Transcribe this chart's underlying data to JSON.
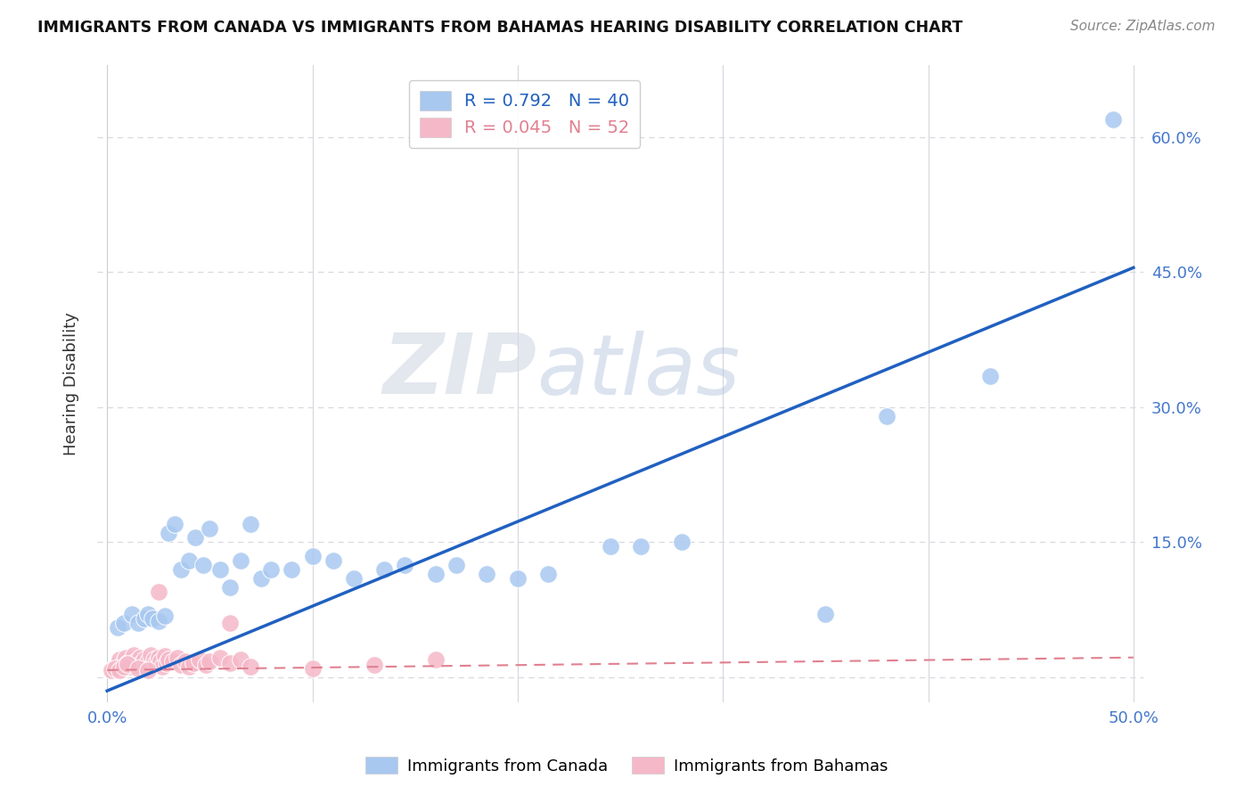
{
  "title": "IMMIGRANTS FROM CANADA VS IMMIGRANTS FROM BAHAMAS HEARING DISABILITY CORRELATION CHART",
  "source": "Source: ZipAtlas.com",
  "ylabel": "Hearing Disability",
  "xlim": [
    -0.005,
    0.505
  ],
  "ylim": [
    -0.028,
    0.68
  ],
  "xticks": [
    0.0,
    0.1,
    0.2,
    0.3,
    0.4,
    0.5
  ],
  "ytick_positions": [
    0.0,
    0.15,
    0.3,
    0.45,
    0.6
  ],
  "ytick_labels": [
    "",
    "15.0%",
    "30.0%",
    "45.0%",
    "60.0%"
  ],
  "canada_R": 0.792,
  "canada_N": 40,
  "bahamas_R": 0.045,
  "bahamas_N": 52,
  "canada_color": "#a8c8f0",
  "bahamas_color": "#f5b8c8",
  "canada_line_color": "#2060c0",
  "bahamas_line_color": "#e08090",
  "canada_trendline_x": [
    0.0,
    0.5
  ],
  "canada_trendline_y": [
    -0.015,
    0.455
  ],
  "bahamas_trendline_x": [
    0.0,
    0.5
  ],
  "bahamas_trendline_y": [
    0.008,
    0.022
  ],
  "canada_points_x": [
    0.005,
    0.008,
    0.012,
    0.015,
    0.018,
    0.02,
    0.022,
    0.025,
    0.028,
    0.03,
    0.033,
    0.036,
    0.04,
    0.043,
    0.047,
    0.05,
    0.055,
    0.06,
    0.065,
    0.07,
    0.075,
    0.08,
    0.09,
    0.1,
    0.11,
    0.12,
    0.135,
    0.145,
    0.16,
    0.17,
    0.185,
    0.2,
    0.215,
    0.245,
    0.26,
    0.28,
    0.35,
    0.38,
    0.43,
    0.49
  ],
  "canada_points_y": [
    0.055,
    0.06,
    0.07,
    0.06,
    0.065,
    0.07,
    0.065,
    0.062,
    0.068,
    0.16,
    0.17,
    0.12,
    0.13,
    0.155,
    0.125,
    0.165,
    0.12,
    0.1,
    0.13,
    0.17,
    0.11,
    0.12,
    0.12,
    0.135,
    0.13,
    0.11,
    0.12,
    0.125,
    0.115,
    0.125,
    0.115,
    0.11,
    0.115,
    0.145,
    0.145,
    0.15,
    0.07,
    0.29,
    0.335,
    0.62
  ],
  "bahamas_points_x": [
    0.003,
    0.005,
    0.006,
    0.007,
    0.008,
    0.009,
    0.01,
    0.011,
    0.012,
    0.013,
    0.014,
    0.015,
    0.016,
    0.017,
    0.018,
    0.019,
    0.02,
    0.021,
    0.022,
    0.023,
    0.024,
    0.025,
    0.026,
    0.027,
    0.028,
    0.029,
    0.03,
    0.032,
    0.034,
    0.036,
    0.038,
    0.04,
    0.042,
    0.045,
    0.048,
    0.05,
    0.055,
    0.06,
    0.065,
    0.07,
    0.002,
    0.004,
    0.006,
    0.008,
    0.01,
    0.015,
    0.02,
    0.06,
    0.1,
    0.13,
    0.025,
    0.16
  ],
  "bahamas_points_y": [
    0.01,
    0.015,
    0.02,
    0.012,
    0.018,
    0.022,
    0.016,
    0.012,
    0.02,
    0.025,
    0.018,
    0.014,
    0.022,
    0.016,
    0.02,
    0.012,
    0.018,
    0.025,
    0.014,
    0.02,
    0.016,
    0.022,
    0.018,
    0.012,
    0.024,
    0.016,
    0.02,
    0.018,
    0.022,
    0.014,
    0.018,
    0.012,
    0.016,
    0.02,
    0.014,
    0.018,
    0.022,
    0.016,
    0.02,
    0.012,
    0.008,
    0.01,
    0.008,
    0.012,
    0.015,
    0.01,
    0.008,
    0.06,
    0.01,
    0.014,
    0.095,
    0.02
  ],
  "watermark_zip": "ZIP",
  "watermark_atlas": "atlas",
  "background_color": "#ffffff",
  "grid_color": "#d8d8e0"
}
